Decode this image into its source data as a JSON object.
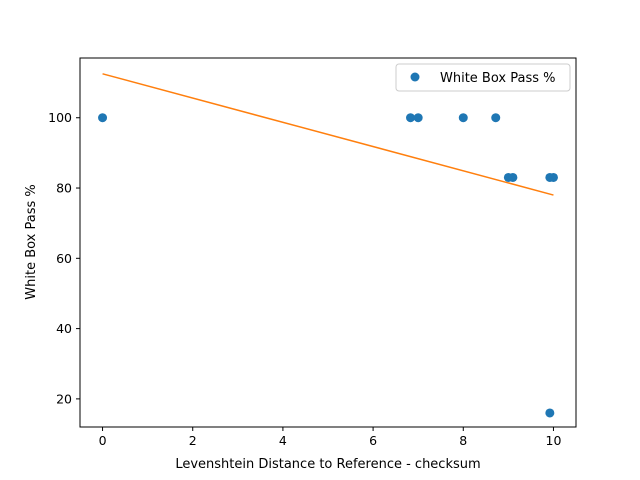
{
  "chart_data": {
    "type": "scatter",
    "title": "",
    "xlabel": "Levenshtein Distance to Reference - checksum",
    "ylabel": "White Box Pass %",
    "xlim": [
      -0.5,
      10.5
    ],
    "ylim": [
      12,
      117
    ],
    "x_ticks": [
      0,
      2,
      4,
      6,
      8,
      10
    ],
    "y_ticks": [
      20,
      40,
      60,
      80,
      100
    ],
    "grid": false,
    "legend_position": "top-right",
    "series": [
      {
        "name": "White Box Pass %",
        "kind": "points",
        "color": "#1f77b4",
        "points": [
          {
            "x": 0,
            "y": 100
          },
          {
            "x": 6.83,
            "y": 100
          },
          {
            "x": 7.0,
            "y": 100
          },
          {
            "x": 8.0,
            "y": 100
          },
          {
            "x": 8.72,
            "y": 100
          },
          {
            "x": 9.0,
            "y": 83
          },
          {
            "x": 9.1,
            "y": 83
          },
          {
            "x": 9.92,
            "y": 83
          },
          {
            "x": 10.0,
            "y": 83
          },
          {
            "x": 9.92,
            "y": 16
          }
        ]
      },
      {
        "kind": "trend-line",
        "color": "#ff7f0e",
        "points": [
          {
            "x": 0,
            "y": 112.5
          },
          {
            "x": 10,
            "y": 78
          }
        ]
      }
    ]
  }
}
